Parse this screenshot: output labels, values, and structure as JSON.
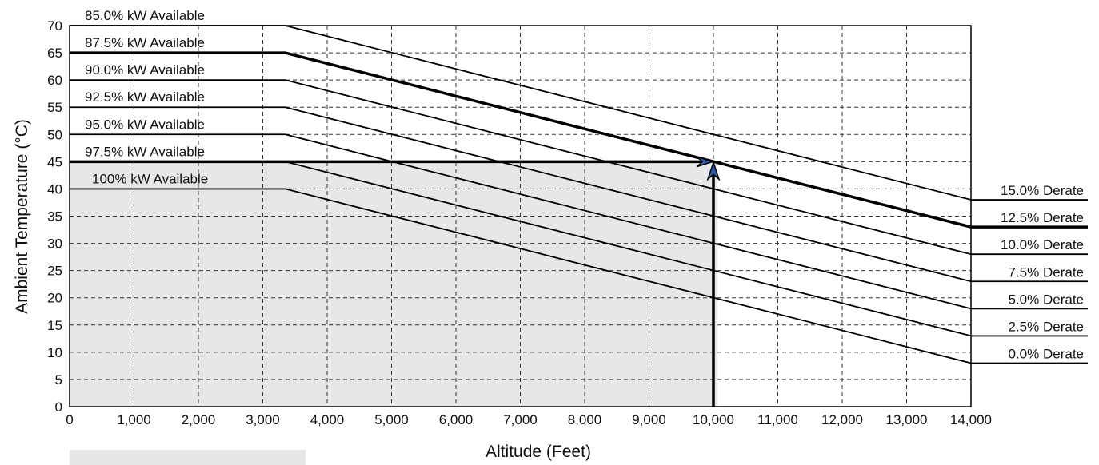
{
  "chart_data": {
    "type": "line",
    "title": "",
    "xlabel": "Altitude (Feet)",
    "ylabel": "Ambient Temperature (°C)",
    "xlim": [
      0,
      14000
    ],
    "ylim": [
      0,
      70
    ],
    "x_ticks": [
      0,
      1000,
      2000,
      3000,
      4000,
      5000,
      6000,
      7000,
      8000,
      9000,
      10000,
      11000,
      12000,
      13000,
      14000
    ],
    "x_tick_labels": [
      "0",
      "1,000",
      "2,000",
      "3,000",
      "4,000",
      "5,000",
      "6,000",
      "7,000",
      "8,000",
      "9,000",
      "10,000",
      "11,000",
      "12,000",
      "13,000",
      "14,000"
    ],
    "y_ticks": [
      0,
      5,
      10,
      15,
      20,
      25,
      30,
      35,
      40,
      45,
      50,
      55,
      60,
      65,
      70
    ],
    "y_tick_labels": [
      "0",
      "5",
      "10",
      "15",
      "20",
      "25",
      "30",
      "35",
      "40",
      "45",
      "50",
      "55",
      "60",
      "65",
      "70"
    ],
    "grid": true,
    "series": [
      {
        "name": "85.0% kW Available",
        "derate_label": "15.0% Derate",
        "points": [
          [
            0,
            70
          ],
          [
            3350,
            70
          ],
          [
            14000,
            38
          ]
        ],
        "bold": false
      },
      {
        "name": "87.5% kW Available",
        "derate_label": "12.5% Derate",
        "points": [
          [
            0,
            65
          ],
          [
            3350,
            65
          ],
          [
            14000,
            33
          ]
        ],
        "bold": true
      },
      {
        "name": "90.0% kW Available",
        "derate_label": "10.0% Derate",
        "points": [
          [
            0,
            60
          ],
          [
            3350,
            60
          ],
          [
            14000,
            28
          ]
        ],
        "bold": false
      },
      {
        "name": "92.5% kW Available",
        "derate_label": "7.5% Derate",
        "points": [
          [
            0,
            55
          ],
          [
            3350,
            55
          ],
          [
            14000,
            23
          ]
        ],
        "bold": false
      },
      {
        "name": "95.0% kW Available",
        "derate_label": "5.0% Derate",
        "points": [
          [
            0,
            50
          ],
          [
            3350,
            50
          ],
          [
            14000,
            18
          ]
        ],
        "bold": false
      },
      {
        "name": "97.5% kW Available",
        "derate_label": "2.5% Derate",
        "points": [
          [
            0,
            45
          ],
          [
            3350,
            45
          ],
          [
            14000,
            13
          ]
        ],
        "bold": false
      },
      {
        "name": "100% kW Available",
        "derate_label": "0.0% Derate",
        "points": [
          [
            0,
            40
          ],
          [
            3350,
            40
          ],
          [
            14000,
            8
          ]
        ],
        "bold": false
      }
    ],
    "shaded_region": {
      "x": [
        0,
        10000
      ],
      "y": [
        0,
        45
      ],
      "color": "#e6e7e9"
    },
    "example": {
      "altitude": 10000,
      "temperature": 45,
      "line_color": "#000000",
      "arrow_color": "#2a5aa8"
    },
    "colors": {
      "line": "#000000",
      "grid": "#333333",
      "shade": "#e6e7e9",
      "arrow_fill": "#2a5aa8"
    }
  },
  "legend_swatch": {
    "color": "#e6e7e9"
  }
}
